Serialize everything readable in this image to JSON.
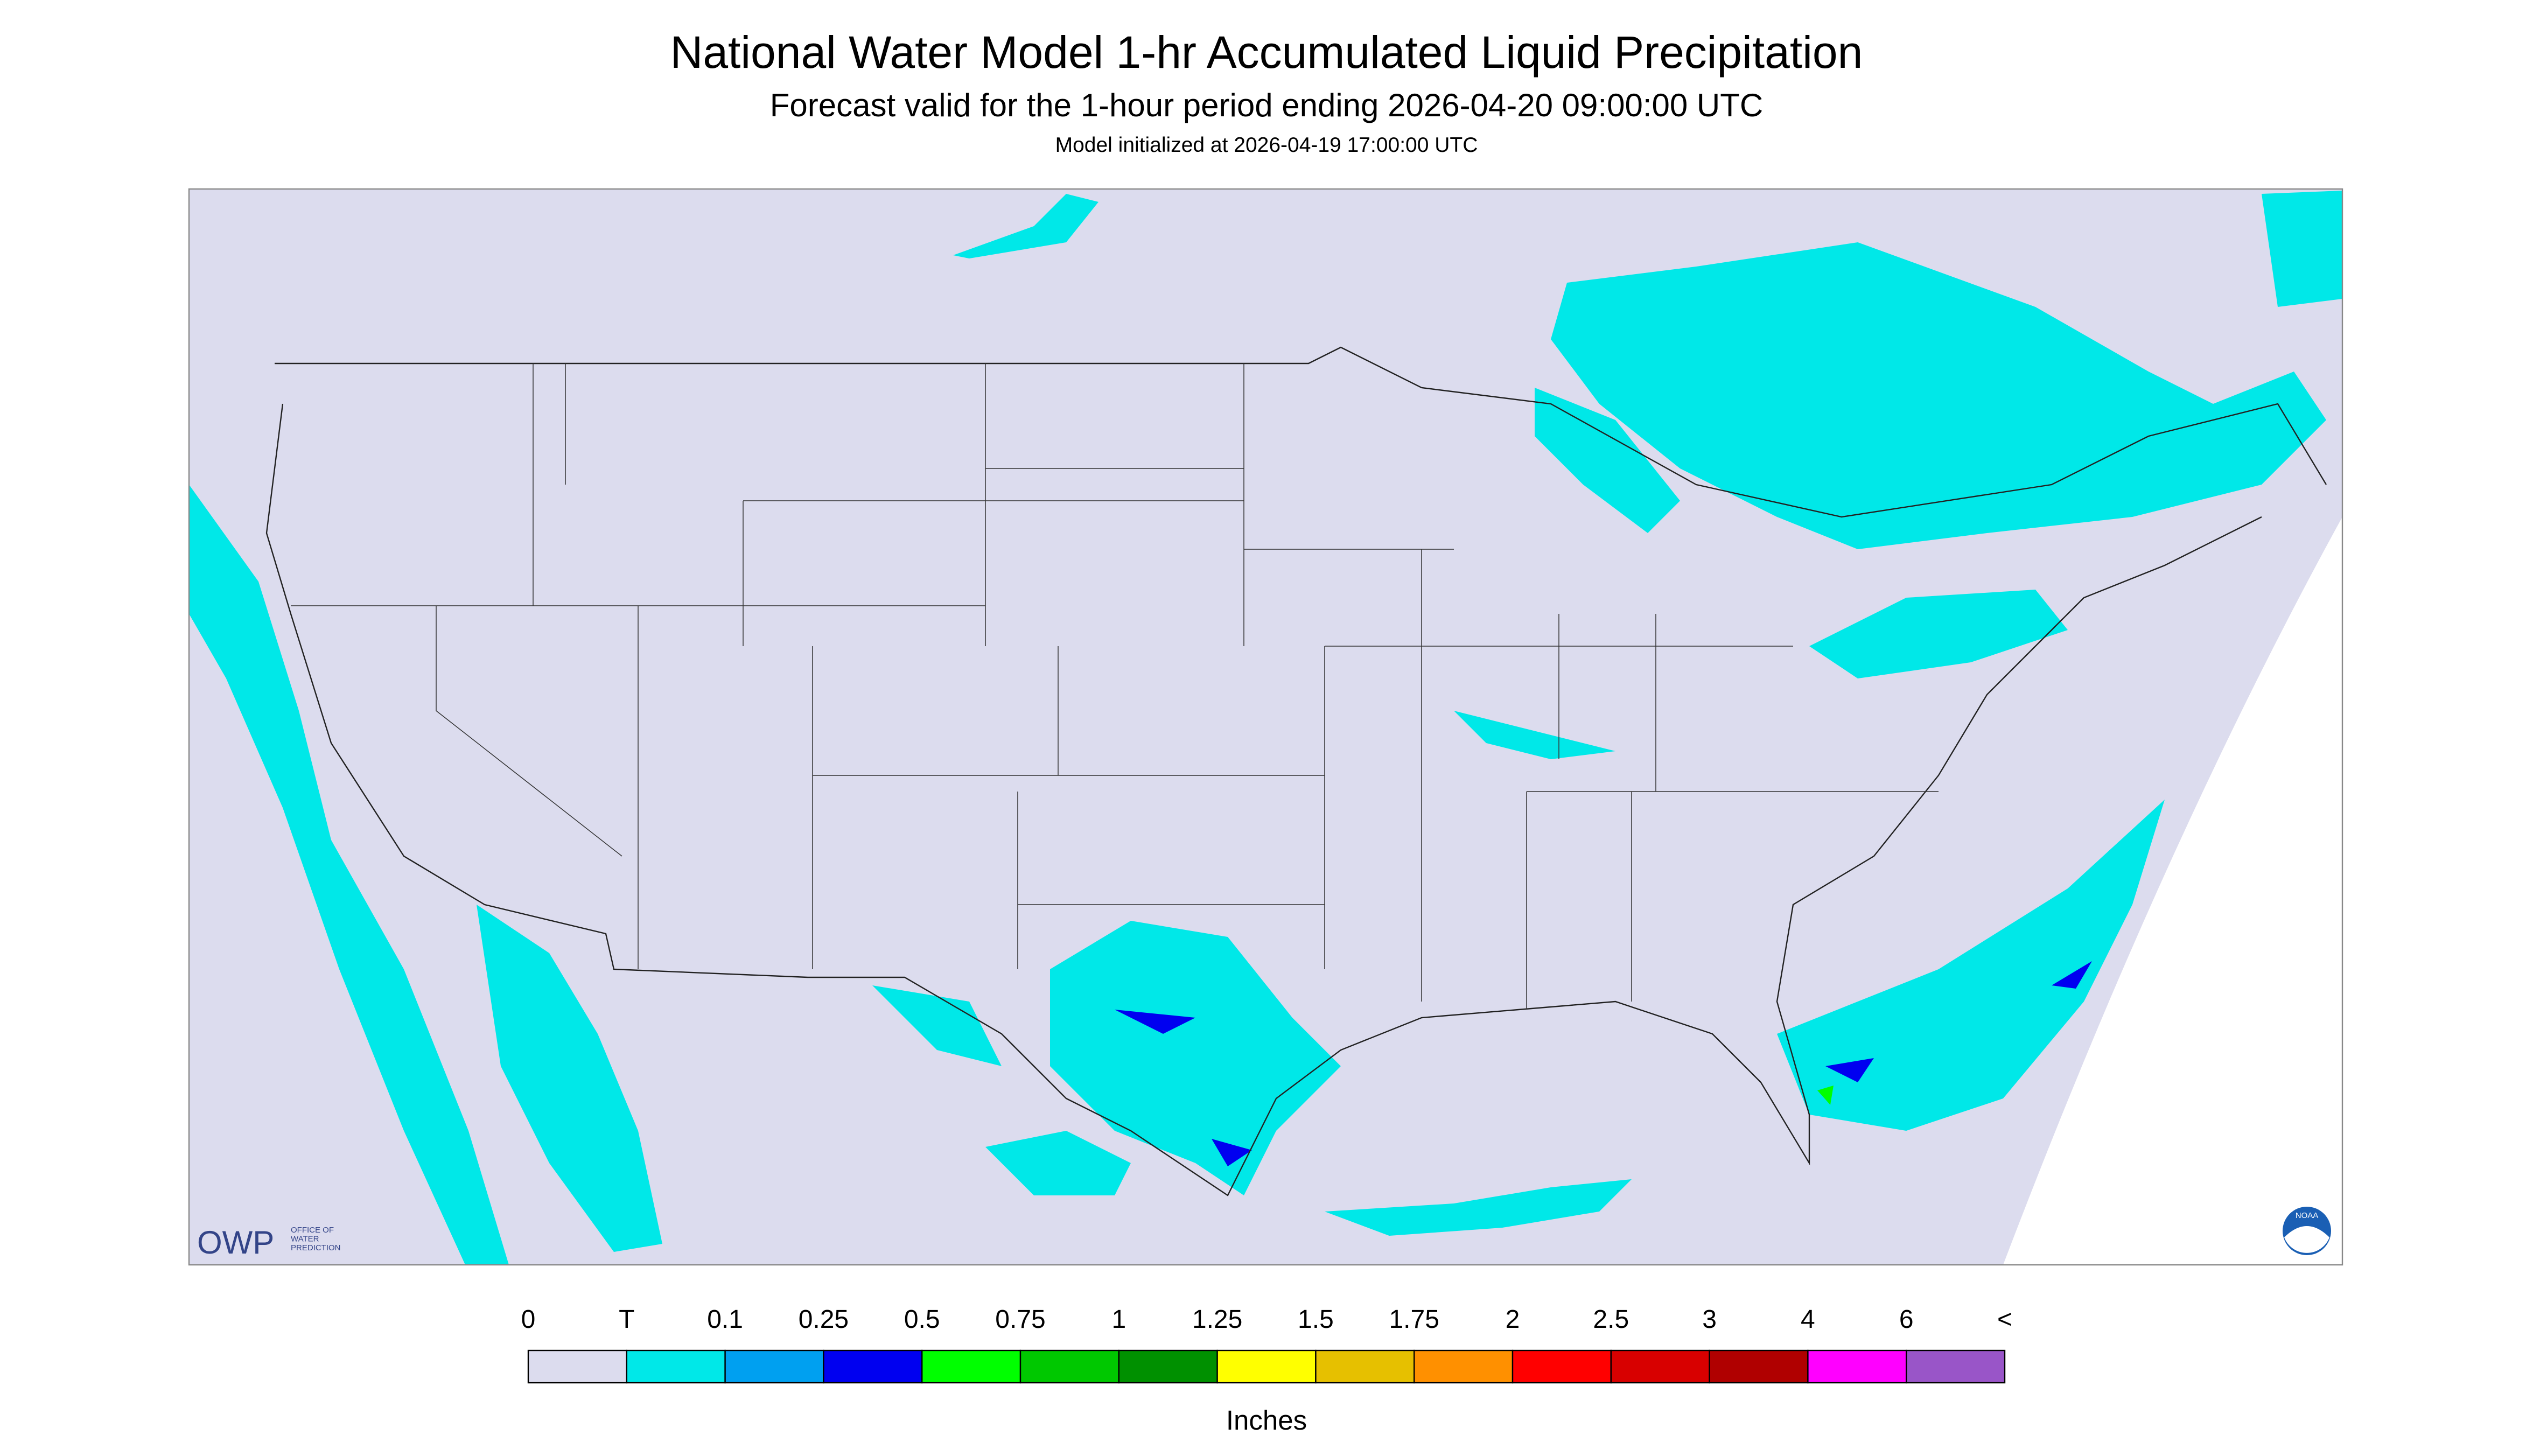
{
  "header": {
    "title": "National Water Model 1-hr Accumulated Liquid Precipitation",
    "subtitle": "Forecast valid for the 1-hour period ending 2026-04-20 09:00:00 UTC",
    "note": "Model initialized at 2026-04-19 17:00:00 UTC"
  },
  "logos": {
    "owp": "OWP",
    "owp_text": [
      "OFFICE OF",
      "WATER",
      "PREDICTION"
    ],
    "noaa": "NOAA"
  },
  "legend": {
    "labels": [
      "0",
      "T",
      "0.1",
      "0.25",
      "0.5",
      "0.75",
      "1",
      "1.25",
      "1.5",
      "1.75",
      "2",
      "2.5",
      "3",
      "4",
      "6",
      "<"
    ],
    "colors": [
      "#dcdcee",
      "#00e8e8",
      "#00a0f0",
      "#0000f0",
      "#00ff00",
      "#00c800",
      "#009000",
      "#ffff00",
      "#e6c000",
      "#ff9000",
      "#ff0000",
      "#d80000",
      "#b00000",
      "#ff00ff",
      "#9955c8"
    ],
    "units": "Inches"
  }
}
